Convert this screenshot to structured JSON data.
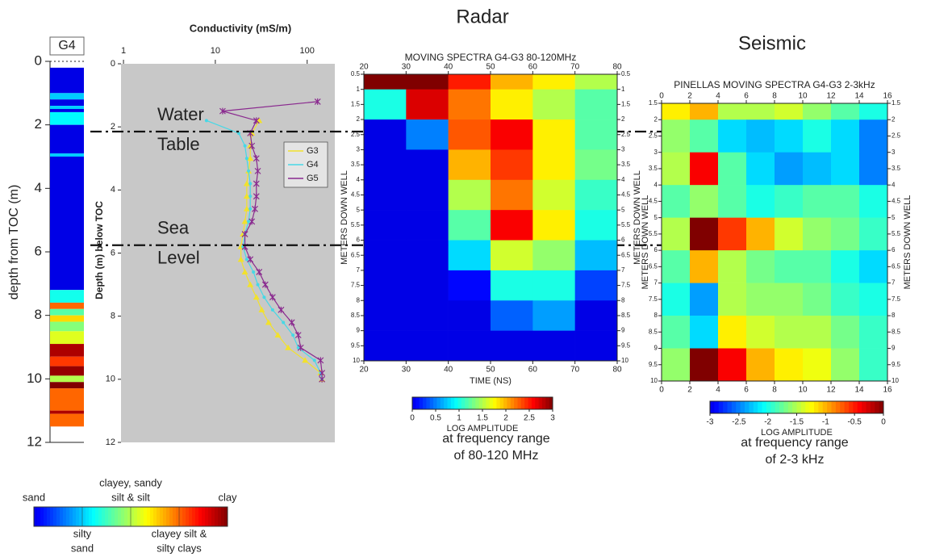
{
  "chart_data": [
    {
      "type": "strip",
      "title": "G4",
      "ylabel": "depth from TOC (m)",
      "ylim": [
        0,
        12
      ],
      "yticks": [
        0,
        2,
        4,
        6,
        8,
        10,
        12
      ],
      "bins": [
        0.2,
        1.0,
        1.2,
        1.4,
        1.5,
        1.6,
        2.0,
        2.9,
        3.0,
        7.2,
        7.6,
        7.8,
        8.0,
        8.2,
        8.5,
        8.9,
        9.3,
        9.6,
        9.9,
        10.1,
        10.3,
        11.0,
        11.1,
        11.5
      ],
      "values": [
        0,
        1,
        0,
        1,
        0,
        1.2,
        0,
        1,
        0,
        1.3,
        3,
        1.6,
        2.5,
        1.8,
        2.2,
        3.8,
        3.2,
        3.9,
        2,
        4,
        3,
        3.8,
        3
      ],
      "colormap": "jet",
      "clim": [
        0,
        4
      ],
      "colorbar_labels": [
        {
          "value": 0,
          "label": [
            "sand"
          ]
        },
        {
          "value": 1,
          "label": [
            "silty",
            "sand"
          ]
        },
        {
          "value": 2,
          "label": [
            "clayey, sandy",
            "silt & silt"
          ]
        },
        {
          "value": 3,
          "label": [
            "clayey silt &",
            "silty clays"
          ]
        },
        {
          "value": 4,
          "label": [
            "clay"
          ]
        }
      ]
    },
    {
      "type": "line",
      "title": "Conductivity (mS/m)",
      "ylabel": "Depth (m) below TOC",
      "xlog": true,
      "xlim": [
        0.94,
        200
      ],
      "xticks": [
        1,
        10,
        100
      ],
      "ylim": [
        0,
        12
      ],
      "yticks": [
        0,
        2,
        4,
        6,
        8,
        10,
        12
      ],
      "legend": "right",
      "series": [
        {
          "name": "G3",
          "color": "#f2e12c",
          "marker": "triangle",
          "depths": [
            1.8,
            2.2,
            2.6,
            3.0,
            3.4,
            3.8,
            4.2,
            4.6,
            5.0,
            5.4,
            5.8,
            6.2,
            6.6,
            7.0,
            7.4,
            7.8,
            8.2,
            8.6,
            9.0,
            9.4,
            9.8,
            10.0
          ],
          "values": [
            30,
            25,
            24,
            24,
            23,
            22,
            22,
            22,
            21,
            20,
            19,
            19,
            21,
            24,
            28,
            32,
            38,
            48,
            62,
            95,
            140,
            145
          ]
        },
        {
          "name": "G4",
          "color": "#46d8e6",
          "marker": "dot",
          "depths": [
            1.8,
            2.2,
            2.6,
            3.0,
            3.4,
            3.8,
            4.2,
            4.6,
            5.0,
            5.4,
            5.8,
            6.2,
            6.6,
            7.0,
            7.4,
            7.8,
            8.2,
            8.6,
            9.0,
            9.4,
            9.8,
            10.0
          ],
          "values": [
            8,
            18,
            21,
            22,
            23,
            24,
            24,
            24,
            23,
            21,
            20,
            22,
            26,
            29,
            34,
            42,
            55,
            70,
            80,
            120,
            140,
            145
          ]
        },
        {
          "name": "G5",
          "color": "#8a2a8f",
          "marker": "star",
          "depths": [
            1.2,
            1.5,
            1.8,
            2.2,
            2.6,
            3.0,
            3.4,
            3.8,
            4.2,
            4.6,
            5.0,
            5.4,
            5.8,
            6.2,
            6.6,
            7.0,
            7.4,
            7.8,
            8.2,
            8.6,
            9.0,
            9.4,
            9.8,
            10.0
          ],
          "values": [
            130,
            12,
            28,
            24,
            25,
            28,
            29,
            28,
            28,
            27,
            25,
            21,
            21,
            24,
            30,
            35,
            42,
            52,
            68,
            80,
            85,
            140,
            145,
            145
          ]
        }
      ],
      "annotations": [
        {
          "text": [
            "Water",
            "Table"
          ],
          "y": 2.15
        },
        {
          "text": [
            "Sea",
            "Level"
          ],
          "y": 5.75
        }
      ]
    },
    {
      "type": "heatmap",
      "header": "Radar",
      "title": "MOVING SPECTRA G4-G3  80-120MHz",
      "xlabel": "TIME (NS)",
      "ylabel": "METERS DOWN WELL",
      "xlim": [
        20,
        80
      ],
      "xticks": [
        20,
        30,
        40,
        50,
        60,
        70,
        80
      ],
      "ylim": [
        0.5,
        10
      ],
      "yticks": [
        0.5,
        1,
        1.5,
        2,
        2.5,
        3,
        3.5,
        4,
        4.5,
        5,
        5.5,
        6,
        6.5,
        7,
        7.5,
        8,
        8.5,
        9,
        9.5,
        10
      ],
      "xbins": [
        20,
        30,
        40,
        50,
        60,
        70,
        80
      ],
      "ybins": [
        0.5,
        1,
        2,
        3,
        4,
        5,
        6,
        7,
        8,
        9,
        10
      ],
      "values": [
        [
          3,
          3,
          2.5,
          2,
          1.8,
          1.5
        ],
        [
          1,
          2.7,
          2.2,
          1.8,
          1.5,
          1.2
        ],
        [
          0,
          0.5,
          2.3,
          2.6,
          1.8,
          1.2
        ],
        [
          0,
          0,
          2,
          2.4,
          1.8,
          1.3
        ],
        [
          0,
          0,
          1.5,
          2.2,
          1.6,
          1.1
        ],
        [
          0,
          0,
          1.2,
          2.6,
          1.8,
          1.0
        ],
        [
          0,
          0,
          0.8,
          1.6,
          1.4,
          0.7
        ],
        [
          0,
          0,
          0.1,
          1.0,
          1.0,
          0.3
        ],
        [
          0,
          0,
          0,
          0.4,
          0.6,
          0
        ],
        [
          0,
          0,
          0,
          0,
          0,
          0
        ]
      ],
      "colormap": "jet",
      "clim": [
        0,
        3
      ],
      "colorbar_label": "LOG AMPLITUDE",
      "colorbar_ticks": [
        0,
        0.5,
        1,
        1.5,
        2,
        2.5,
        3
      ],
      "caption": [
        "at frequency range",
        "of 80-120 MHz"
      ]
    },
    {
      "type": "heatmap",
      "header": "Seismic",
      "title": "PINELLAS MOVING SPECTRA G4-G3  2-3kHz",
      "ylabel": "METERS DOWN WELL",
      "xlim": [
        0,
        16
      ],
      "xticks": [
        0,
        2,
        4,
        6,
        8,
        10,
        12,
        14,
        16
      ],
      "ylim": [
        1.5,
        10
      ],
      "yticks": [
        1.5,
        2,
        2.5,
        3,
        3.5,
        4,
        4.5,
        5,
        5.5,
        6,
        6.5,
        7,
        7.5,
        8,
        8.5,
        9,
        9.5,
        10
      ],
      "xbins": [
        0,
        2,
        4,
        6,
        8,
        10,
        12,
        14,
        16
      ],
      "ybins": [
        1.5,
        2,
        3,
        4,
        5,
        6,
        7,
        8,
        9,
        10
      ],
      "values": [
        [
          -1.2,
          -1.0,
          -1.5,
          -1.5,
          -1.4,
          -1.6,
          -1.8,
          -2.0
        ],
        [
          -1.6,
          -1.8,
          -2.2,
          -2.3,
          -2.2,
          -2.0,
          -2.2,
          -2.5
        ],
        [
          -1.5,
          -0.4,
          -1.8,
          -2.2,
          -2.4,
          -2.3,
          -2.2,
          -2.5
        ],
        [
          -1.8,
          -1.6,
          -1.8,
          -2.0,
          -1.9,
          -1.8,
          -1.8,
          -2.0
        ],
        [
          -1.5,
          0,
          -0.6,
          -1.0,
          -1.4,
          -1.6,
          -1.7,
          -1.9
        ],
        [
          -1.8,
          -1.0,
          -1.5,
          -1.7,
          -1.8,
          -1.8,
          -2.0,
          -2.2
        ],
        [
          -2.0,
          -2.4,
          -1.5,
          -1.6,
          -1.6,
          -1.7,
          -1.9,
          -2.0
        ],
        [
          -1.8,
          -2.2,
          -1.2,
          -1.4,
          -1.5,
          -1.5,
          -1.7,
          -1.9
        ],
        [
          -1.6,
          0,
          -0.4,
          -1.0,
          -1.2,
          -1.3,
          -1.6,
          -1.9
        ]
      ],
      "colormap": "jet",
      "clim": [
        -3,
        0
      ],
      "colorbar_label": "LOG AMPLITUDE",
      "colorbar_ticks": [
        -3,
        -2.5,
        -2,
        -1.5,
        -1,
        -0.5,
        0
      ],
      "caption": [
        "at frequency range",
        "of 2-3 kHz"
      ]
    }
  ]
}
